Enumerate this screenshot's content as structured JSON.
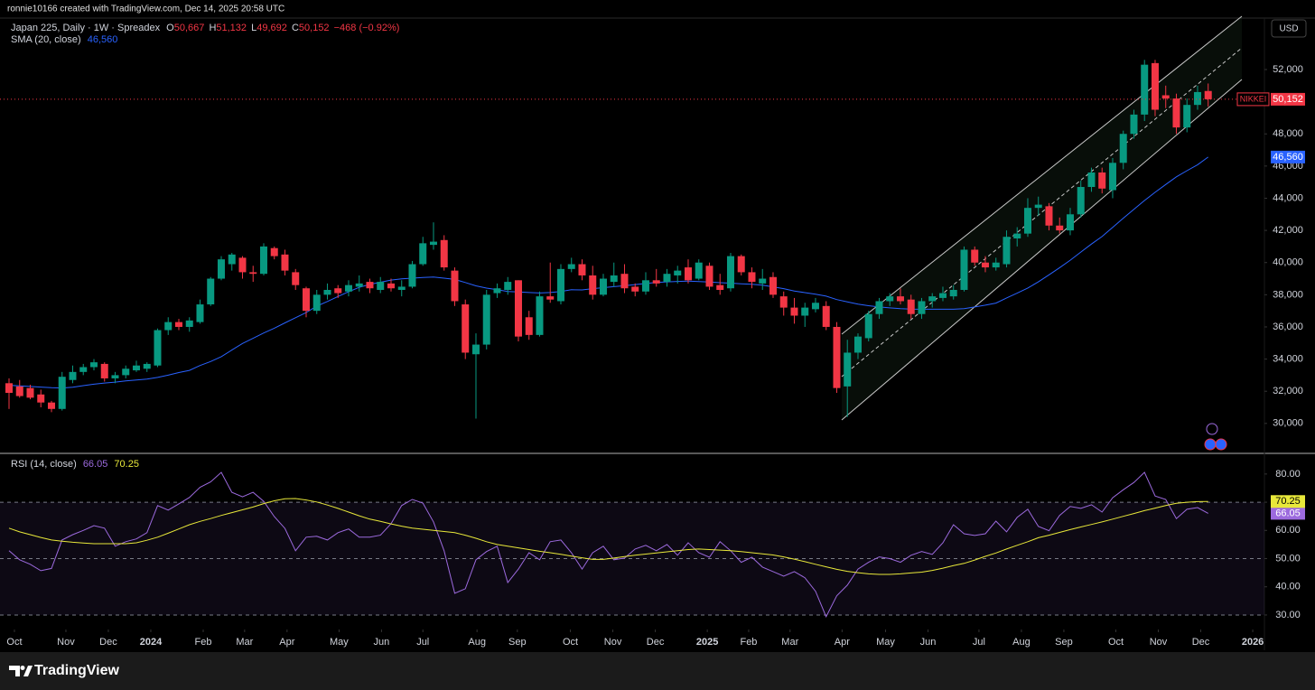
{
  "header": {
    "text": "ronnie10166 created with TradingView.com, Dec 14, 2025 20:58 UTC"
  },
  "currency": "USD",
  "footer": {
    "brand": "TradingView"
  },
  "chart_data": [
    {
      "type": "candlestick",
      "title": "Japan 225, Daily · 1W · Spreadex",
      "ohlc_legend": [
        {
          "label": "O",
          "value": "50,667"
        },
        {
          "label": "H",
          "value": "51,132"
        },
        {
          "label": "L",
          "value": "49,692"
        },
        {
          "label": "C",
          "value": "50,152"
        }
      ],
      "change": "−468 (−0.92%)",
      "symbol_tag": "NIKKEI",
      "up_color": "#089981",
      "down_color": "#f23645",
      "open": [
        32500,
        32300,
        32200,
        31800,
        31300,
        30900,
        32700,
        33200,
        33500,
        33700,
        32800,
        33000,
        33300,
        33400,
        33600,
        35800,
        36300,
        36000,
        36300,
        37400,
        39000,
        39900,
        40300,
        39400,
        39300,
        40900,
        40500,
        39400,
        38400,
        37000,
        38000,
        38400,
        38200,
        38500,
        38800,
        38300,
        38700,
        38300,
        38500,
        39900,
        41100,
        41400,
        39500,
        37400,
        34300,
        34900,
        38100,
        38300,
        38900,
        36600,
        35500,
        37900,
        37600,
        39600,
        39900,
        39200,
        38000,
        38800,
        39300,
        38500,
        38200,
        38900,
        38800,
        39200,
        39700,
        39000,
        39800,
        38600,
        38400,
        40400,
        39400,
        38700,
        39100,
        37900,
        37200,
        36700,
        37100,
        37300,
        36000,
        32300,
        34400,
        35300,
        36800,
        37600,
        37900,
        37700,
        36800,
        37600,
        37800,
        37900,
        38300,
        40800,
        40000,
        39700,
        39900,
        41500,
        41800,
        43400,
        43500,
        42300,
        42000,
        43000,
        44700,
        45600,
        44500,
        46200,
        48000,
        49200,
        52400,
        50400,
        50200,
        48400,
        49800,
        50667
      ],
      "high": [
        32800,
        32700,
        32400,
        32100,
        31400,
        33200,
        33600,
        33700,
        34000,
        33800,
        33200,
        33600,
        33900,
        33800,
        35900,
        36600,
        36500,
        36600,
        37700,
        39100,
        40400,
        40600,
        40400,
        39800,
        41200,
        41000,
        40800,
        39600,
        38500,
        38300,
        38700,
        38600,
        38900,
        39200,
        39000,
        39100,
        39000,
        38900,
        40100,
        41600,
        42500,
        41700,
        39700,
        37700,
        35600,
        38300,
        38700,
        39100,
        38900,
        37000,
        38200,
        40000,
        39900,
        40300,
        40200,
        39800,
        39300,
        40000,
        39900,
        38700,
        39400,
        39600,
        39600,
        39800,
        40200,
        40200,
        40000,
        39300,
        40600,
        40500,
        39700,
        39600,
        39400,
        38200,
        37800,
        37500,
        37800,
        37600,
        36300,
        35200,
        35600,
        37000,
        37800,
        38100,
        38400,
        38000,
        37800,
        38100,
        38500,
        38600,
        41000,
        41000,
        40400,
        40300,
        42000,
        42200,
        44000,
        44100,
        43700,
        42800,
        43400,
        45100,
        45900,
        45900,
        46500,
        48200,
        49500,
        52600,
        52600,
        51000,
        50500,
        50200,
        51000,
        51132
      ],
      "low": [
        30900,
        31600,
        31500,
        31000,
        30700,
        30800,
        32500,
        33000,
        33300,
        32600,
        32500,
        32800,
        33200,
        33200,
        33500,
        35500,
        35800,
        35700,
        36200,
        37300,
        38900,
        39500,
        39000,
        38800,
        39200,
        40200,
        39200,
        38300,
        36600,
        36800,
        37700,
        37800,
        37900,
        38200,
        38100,
        38100,
        38200,
        37900,
        38400,
        39800,
        40800,
        39500,
        37300,
        34000,
        30300,
        34600,
        37800,
        38000,
        35100,
        35200,
        35400,
        37500,
        37400,
        39400,
        38900,
        37700,
        37900,
        38500,
        38100,
        37900,
        38000,
        38500,
        38500,
        38700,
        38700,
        38900,
        38300,
        38000,
        38200,
        39200,
        38400,
        38300,
        37800,
        36700,
        36200,
        36000,
        36900,
        35800,
        31900,
        30400,
        34000,
        35100,
        36500,
        37300,
        37400,
        36500,
        36500,
        37200,
        37600,
        37700,
        38200,
        39800,
        39400,
        39500,
        39700,
        41000,
        41600,
        42900,
        42000,
        41800,
        41700,
        42800,
        44400,
        44300,
        44000,
        45800,
        47700,
        48800,
        49100,
        49600,
        48000,
        48100,
        49500,
        49692
      ],
      "close": [
        31900,
        31700,
        31600,
        31300,
        30900,
        32900,
        33200,
        33500,
        33800,
        32800,
        33000,
        33400,
        33600,
        33700,
        35800,
        36300,
        36000,
        36400,
        37400,
        39000,
        40200,
        40500,
        39400,
        39300,
        41000,
        40400,
        39500,
        38600,
        37000,
        38000,
        38300,
        38100,
        38600,
        38700,
        38400,
        38800,
        38400,
        38500,
        39900,
        41200,
        41300,
        39700,
        37600,
        34400,
        34900,
        38000,
        38400,
        38800,
        35400,
        35500,
        37900,
        37700,
        39600,
        39900,
        39200,
        38000,
        39000,
        39200,
        38400,
        38200,
        38900,
        38700,
        39300,
        39500,
        38900,
        40000,
        38500,
        38300,
        40400,
        39400,
        38800,
        39000,
        38000,
        37200,
        36700,
        37200,
        37500,
        36000,
        32200,
        34400,
        35400,
        36800,
        37600,
        37900,
        37600,
        36800,
        37600,
        37900,
        38100,
        38300,
        40800,
        40000,
        39700,
        40000,
        41600,
        41800,
        43400,
        43600,
        42300,
        42000,
        43000,
        44700,
        45600,
        44600,
        46200,
        48000,
        49200,
        52300,
        49500,
        50200,
        48400,
        49800,
        50600,
        50152
      ],
      "series": [
        {
          "name": "SMA (20, close)",
          "color": "#2962ff",
          "last_label": "46,560",
          "values": [
            32370,
            32330,
            32300,
            32260,
            32220,
            32200,
            32250,
            32350,
            32440,
            32510,
            32570,
            32640,
            32700,
            32760,
            32860,
            33000,
            33160,
            33300,
            33600,
            33850,
            34150,
            34560,
            34970,
            35290,
            35620,
            35920,
            36250,
            36570,
            36890,
            37290,
            37580,
            37890,
            38190,
            38460,
            38640,
            38780,
            38910,
            38990,
            39030,
            39070,
            39100,
            39030,
            38950,
            38760,
            38550,
            38410,
            38310,
            38200,
            38170,
            38140,
            38110,
            38140,
            38200,
            38310,
            38300,
            38380,
            38440,
            38500,
            38560,
            38630,
            38700,
            38760,
            38800,
            38830,
            38850,
            38820,
            38790,
            38750,
            38720,
            38680,
            38650,
            38600,
            38490,
            38380,
            38230,
            38130,
            38030,
            37910,
            37700,
            37560,
            37420,
            37320,
            37240,
            37180,
            37140,
            37110,
            37100,
            37100,
            37100,
            37100,
            37140,
            37240,
            37350,
            37480,
            37800,
            38100,
            38420,
            38800,
            39240,
            39680,
            40150,
            40650,
            41150,
            41620,
            42190,
            42760,
            43310,
            43860,
            44370,
            44850,
            45330,
            45710,
            46080,
            46560
          ]
        }
      ],
      "ylim": [
        28250,
        55200
      ],
      "yticks": [
        {
          "value": 30000,
          "label": "30,000"
        },
        {
          "value": 32000,
          "label": "32,000"
        },
        {
          "value": 34000,
          "label": "34,000"
        },
        {
          "value": 36000,
          "label": "36,000"
        },
        {
          "value": 38000,
          "label": "38,000"
        },
        {
          "value": 40000,
          "label": "40,000"
        },
        {
          "value": 42000,
          "label": "42,000"
        },
        {
          "value": 44000,
          "label": "44,000"
        },
        {
          "value": 46000,
          "label": "46,000"
        },
        {
          "value": 48000,
          "label": "48,000"
        },
        {
          "value": 50000,
          "label": "50,000"
        },
        {
          "value": 52000,
          "label": "52,000"
        }
      ]
    },
    {
      "type": "line",
      "title": "RSI (14, close)",
      "series": [
        {
          "color": "#9c6ade",
          "values": [
            52.8,
            49.6,
            48,
            45.7,
            46.5,
            56.6,
            58.5,
            60,
            61.7,
            60.8,
            54.4,
            56,
            57,
            59.2,
            68.8,
            67.2,
            69.4,
            71.7,
            75.3,
            77.2,
            80.6,
            73.5,
            71.9,
            73.5,
            70.3,
            64.9,
            60.7,
            52.8,
            57.6,
            57.9,
            56.6,
            59.2,
            60.5,
            57.6,
            57.6,
            58.3,
            62.4,
            68.8,
            71,
            69.7,
            63,
            52.8,
            37.7,
            39.3,
            49.6,
            52.5,
            54.4,
            41.5,
            46.3,
            52.1,
            49.6,
            56,
            56.6,
            52.1,
            46.3,
            52.1,
            54.4,
            49.6,
            50.2,
            53.4,
            54.7,
            52.8,
            55,
            51.2,
            55.6,
            52.1,
            50.5,
            56,
            52.8,
            48.7,
            50.5,
            47,
            45.4,
            43.8,
            45.4,
            43.2,
            38.4,
            29.4,
            36.8,
            40.6,
            46.3,
            48.7,
            50.6,
            50,
            48.7,
            51.2,
            52.5,
            51.5,
            55.6,
            62,
            58.8,
            58.2,
            58.8,
            63.3,
            59.5,
            64.6,
            67.5,
            61.4,
            59.9,
            65.3,
            68.5,
            67.8,
            69.1,
            66.5,
            71.6,
            74.4,
            77,
            80.6,
            72.2,
            71,
            64.2,
            67.5,
            68.1,
            66.05
          ]
        },
        {
          "color": "#e8e83a",
          "values": [
            60.8,
            59.5,
            58.5,
            57.5,
            56.6,
            56.2,
            55.8,
            55.5,
            55.3,
            55.3,
            55.3,
            55.3,
            55.6,
            56.5,
            57.6,
            59,
            60.5,
            62,
            63.2,
            64.2,
            65.3,
            66.3,
            67.3,
            68.3,
            69.5,
            70.5,
            71.2,
            71.3,
            70.8,
            70.1,
            69,
            67.8,
            66.5,
            65.2,
            64,
            63.2,
            62.3,
            61.5,
            60.8,
            60.4,
            60,
            59.6,
            59.2,
            58.3,
            57.2,
            56,
            55,
            54.4,
            53.8,
            53.2,
            52.6,
            52.1,
            51.5,
            50.9,
            50.3,
            49.7,
            49.7,
            50.2,
            50.7,
            51.2,
            51.6,
            52,
            52.4,
            52.8,
            53.2,
            53.4,
            53.2,
            53,
            52.8,
            52.5,
            52.1,
            51.7,
            51.3,
            50.6,
            49.8,
            48.9,
            48,
            47.1,
            46.2,
            45.5,
            45,
            44.6,
            44.4,
            44.4,
            44.6,
            44.9,
            45.2,
            45.8,
            46.6,
            47.5,
            48.3,
            49.5,
            50.8,
            52,
            53.4,
            54.7,
            56,
            57.4,
            58.3,
            59.3,
            60.3,
            61.2,
            62.1,
            63,
            64,
            65,
            66,
            67,
            67.9,
            68.8,
            69.6,
            70,
            70.2,
            70.25
          ]
        }
      ],
      "bands": [
        70,
        50,
        30
      ],
      "ylim": [
        25.5,
        87
      ],
      "yticks": [
        {
          "value": 30,
          "label": "30.00"
        },
        {
          "value": 40,
          "label": "40.00"
        },
        {
          "value": 50,
          "label": "50.00"
        },
        {
          "value": 60,
          "label": "60.00"
        },
        {
          "value": 70,
          "label": "70.00"
        },
        {
          "value": 80,
          "label": "80.00"
        }
      ],
      "xlim": [
        -0.85,
        118.3
      ],
      "xticks": [
        {
          "value": 0.51,
          "label": "Oct"
        },
        {
          "value": 5.36,
          "label": "Nov"
        },
        {
          "value": 9.36,
          "label": "Dec"
        },
        {
          "value": 13.36,
          "label": "2024"
        },
        {
          "value": 18.3,
          "label": "Feb"
        },
        {
          "value": 22.2,
          "label": "Mar"
        },
        {
          "value": 26.2,
          "label": "Apr"
        },
        {
          "value": 31.1,
          "label": "May"
        },
        {
          "value": 35.1,
          "label": "Jun"
        },
        {
          "value": 39,
          "label": "Jul"
        },
        {
          "value": 44.1,
          "label": "Aug"
        },
        {
          "value": 47.9,
          "label": "Sep"
        },
        {
          "value": 52.9,
          "label": "Oct"
        },
        {
          "value": 56.9,
          "label": "Nov"
        },
        {
          "value": 60.9,
          "label": "Dec"
        },
        {
          "value": 65.8,
          "label": "2025"
        },
        {
          "value": 69.7,
          "label": "Feb"
        },
        {
          "value": 73.6,
          "label": "Mar"
        },
        {
          "value": 78.5,
          "label": "Apr"
        },
        {
          "value": 82.6,
          "label": "May"
        },
        {
          "value": 86.6,
          "label": "Jun"
        },
        {
          "value": 91.4,
          "label": "Jul"
        },
        {
          "value": 95.4,
          "label": "Aug"
        },
        {
          "value": 99.4,
          "label": "Sep"
        },
        {
          "value": 104.3,
          "label": "Oct"
        },
        {
          "value": 108.3,
          "label": "Nov"
        },
        {
          "value": 112.3,
          "label": "Dec"
        },
        {
          "value": 117.2,
          "label": "2026"
        }
      ]
    }
  ]
}
